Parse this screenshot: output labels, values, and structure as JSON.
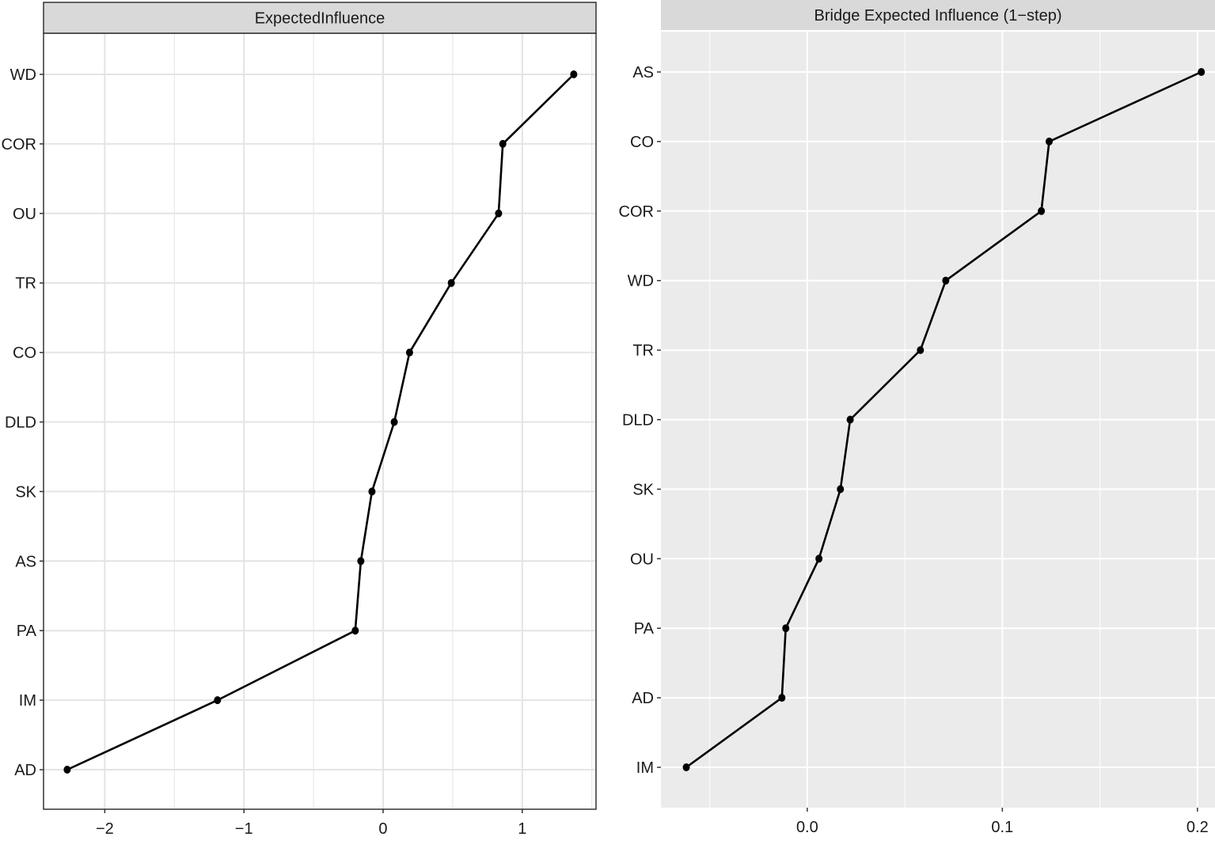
{
  "chart_data": [
    {
      "type": "line",
      "title": "ExpectedInfluence",
      "xlabel": "",
      "ylabel": "",
      "xlim": [
        -2.44,
        1.53
      ],
      "x_ticks": [
        -2,
        -1,
        0,
        1
      ],
      "x_tick_labels": [
        "−2",
        "−1",
        "0",
        "1"
      ],
      "categories": [
        "WD",
        "COR",
        "OU",
        "TR",
        "CO",
        "DLD",
        "SK",
        "AS",
        "PA",
        "IM",
        "AD"
      ],
      "values": [
        1.37,
        0.86,
        0.83,
        0.49,
        0.19,
        0.08,
        -0.08,
        -0.16,
        -0.2,
        -1.19,
        -2.27
      ],
      "grid": true,
      "legend": "none",
      "colors": {
        "panel_bg": "#ffffff",
        "grid": "#e4e4e4",
        "strip_bg": "#d9d9d9",
        "line": "#000000",
        "border": "#333333"
      }
    },
    {
      "type": "line",
      "title": "Bridge Expected Influence (1−step)",
      "xlabel": "",
      "ylabel": "",
      "xlim": [
        -0.075,
        0.209
      ],
      "x_ticks": [
        0.0,
        0.1,
        0.2
      ],
      "x_tick_labels": [
        "0.0",
        "0.1",
        "0.2"
      ],
      "categories": [
        "AS",
        "CO",
        "COR",
        "WD",
        "TR",
        "DLD",
        "SK",
        "OU",
        "PA",
        "AD",
        "IM"
      ],
      "values": [
        0.202,
        0.124,
        0.12,
        0.071,
        0.058,
        0.022,
        0.017,
        0.006,
        -0.011,
        -0.013,
        -0.062
      ],
      "grid": true,
      "legend": "none",
      "colors": {
        "panel_bg": "#ebebeb",
        "grid": "#ffffff",
        "strip_bg": "#d9d9d9",
        "line": "#000000",
        "border": "none"
      }
    }
  ]
}
